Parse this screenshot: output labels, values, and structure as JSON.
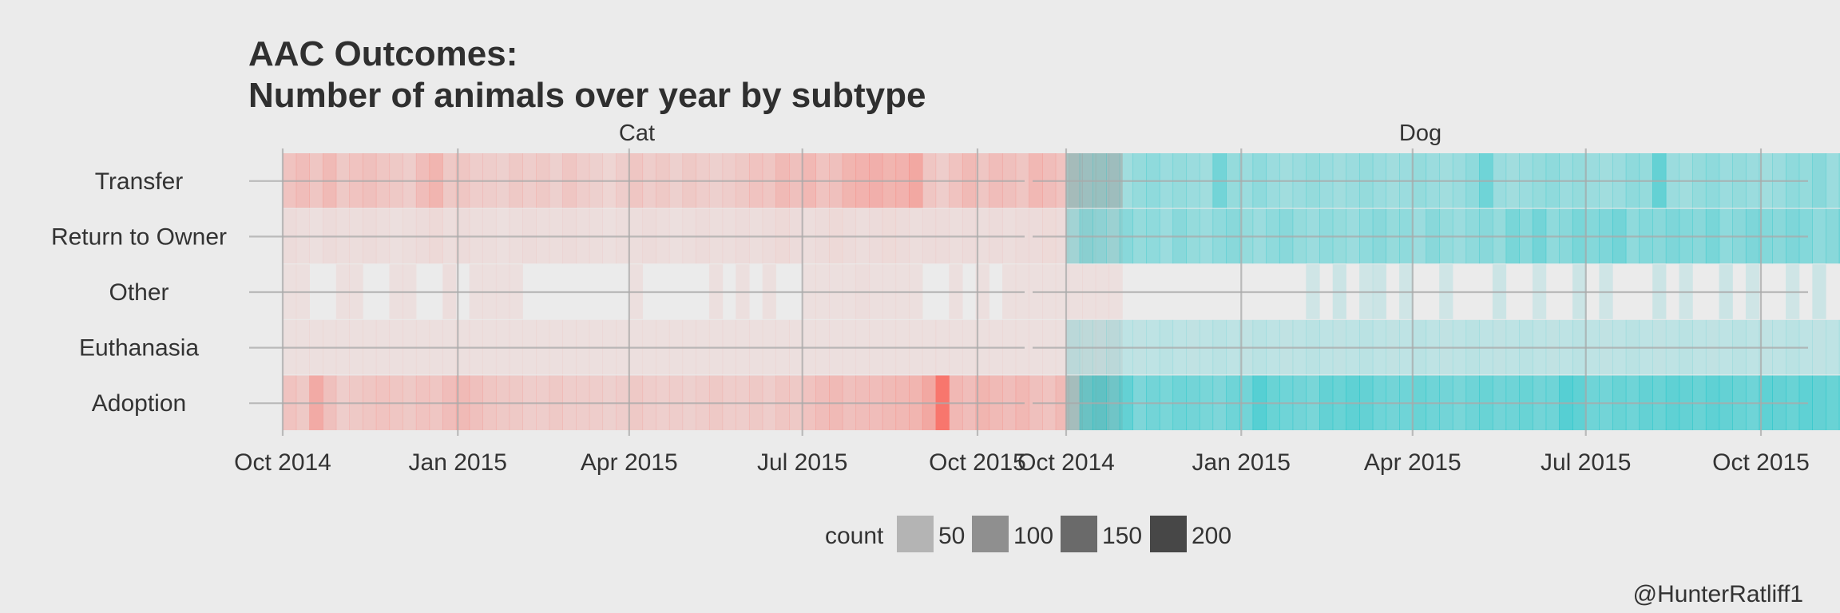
{
  "chart_data": {
    "type": "heatmap",
    "title": "AAC Outcomes:",
    "subtitle": "Number of animals over year by subtype",
    "caption": "@HunterRatliff1",
    "facets": [
      "Cat",
      "Dog"
    ],
    "y_categories": [
      "Transfer",
      "Return to Owner",
      "Other",
      "Euthanasia",
      "Adoption"
    ],
    "x_ticks": [
      "Oct 2014",
      "Jan 2015",
      "Apr 2015",
      "Jul 2015",
      "Oct 2015"
    ],
    "x_range": [
      "2014-10-01",
      "2015-10-22"
    ],
    "fill_legend": {
      "title": "count",
      "breaks": [
        50,
        100,
        150,
        200
      ]
    },
    "colors": {
      "Cat": "#f8766d",
      "Dog": "#00bfc4",
      "background": "#ebebeb",
      "grid": "#c9c9c9"
    },
    "series": [
      {
        "facet": "Cat",
        "x_start": "2014-10-01",
        "bin_days": 7,
        "rows": {
          "Transfer": [
            45,
            55,
            40,
            60,
            35,
            45,
            50,
            40,
            35,
            30,
            55,
            70,
            35,
            40,
            30,
            30,
            25,
            35,
            30,
            35,
            25,
            40,
            30,
            25,
            20,
            30,
            40,
            30,
            35,
            25,
            35,
            30,
            25,
            30,
            35,
            45,
            40,
            60,
            50,
            65,
            45,
            50,
            70,
            75,
            80,
            70,
            75,
            95,
            40,
            30,
            45,
            60,
            40,
            55,
            50,
            40,
            65,
            55,
            45,
            60,
            50,
            50,
            55
          ],
          "Return to Owner": [
            12,
            10,
            8,
            12,
            10,
            10,
            12,
            10,
            8,
            10,
            12,
            15,
            10,
            12,
            10,
            10,
            8,
            10,
            12,
            10,
            10,
            12,
            10,
            10,
            8,
            10,
            10,
            12,
            10,
            8,
            10,
            12,
            10,
            10,
            12,
            10,
            12,
            15,
            12,
            10,
            12,
            15,
            12,
            10,
            12,
            14,
            12,
            10,
            12,
            12,
            10,
            12,
            10,
            12,
            10,
            12,
            12,
            14,
            12,
            10,
            12,
            10,
            12
          ],
          "Other": [
            8,
            5,
            0,
            0,
            8,
            6,
            0,
            0,
            5,
            6,
            0,
            0,
            10,
            0,
            8,
            6,
            5,
            6,
            0,
            0,
            0,
            0,
            0,
            0,
            0,
            0,
            4,
            0,
            0,
            0,
            0,
            0,
            5,
            0,
            6,
            0,
            5,
            0,
            0,
            6,
            5,
            6,
            8,
            10,
            6,
            5,
            5,
            8,
            0,
            0,
            6,
            0,
            5,
            0,
            6,
            5,
            6,
            5,
            4,
            5,
            6,
            5,
            4
          ],
          "Euthanasia": [
            6,
            5,
            6,
            8,
            5,
            5,
            6,
            5,
            7,
            5,
            6,
            5,
            5,
            6,
            5,
            6,
            5,
            6,
            5,
            6,
            6,
            5,
            5,
            6,
            5,
            5,
            6,
            5,
            5,
            6,
            5,
            5,
            6,
            5,
            5,
            6,
            5,
            6,
            5,
            7,
            6,
            5,
            6,
            5,
            6,
            5,
            6,
            5,
            6,
            5,
            6,
            5,
            5,
            6,
            5,
            6,
            5,
            6,
            5,
            6,
            5,
            6,
            5
          ],
          "Adoption": [
            45,
            35,
            90,
            50,
            30,
            35,
            40,
            45,
            40,
            35,
            45,
            40,
            55,
            60,
            50,
            40,
            35,
            35,
            30,
            30,
            35,
            30,
            30,
            30,
            25,
            30,
            35,
            30,
            28,
            30,
            25,
            30,
            35,
            30,
            30,
            35,
            30,
            40,
            35,
            45,
            55,
            60,
            50,
            55,
            55,
            60,
            65,
            70,
            95,
            210,
            65,
            55,
            70,
            60,
            55,
            65,
            50,
            45,
            60,
            55,
            40,
            45,
            30
          ]
        }
      },
      {
        "facet": "Dog",
        "x_start": "2014-10-01",
        "bin_days": 7,
        "rows": {
          "Transfer": [
            40,
            45,
            50,
            45,
            40,
            50,
            55,
            45,
            50,
            45,
            40,
            80,
            50,
            45,
            55,
            45,
            40,
            45,
            50,
            45,
            40,
            45,
            50,
            45,
            40,
            45,
            50,
            45,
            40,
            45,
            55,
            85,
            45,
            40,
            45,
            50,
            55,
            45,
            50,
            45,
            40,
            45,
            55,
            50,
            95,
            45,
            40,
            50,
            55,
            45,
            50,
            45,
            40,
            45,
            55,
            50,
            60,
            45,
            50,
            55,
            70,
            45,
            40
          ],
          "Return to Owner": [
            40,
            60,
            55,
            45,
            60,
            50,
            55,
            45,
            60,
            50,
            45,
            55,
            60,
            50,
            45,
            55,
            60,
            50,
            45,
            55,
            50,
            45,
            55,
            60,
            50,
            55,
            45,
            60,
            50,
            45,
            55,
            60,
            50,
            75,
            60,
            80,
            55,
            60,
            75,
            65,
            70,
            80,
            55,
            65,
            60,
            70,
            65,
            60,
            75,
            55,
            60,
            70,
            65,
            60,
            70,
            65,
            55,
            60,
            70,
            65,
            60,
            70,
            55
          ],
          "Other": [
            0,
            0,
            0,
            0,
            0,
            0,
            0,
            0,
            0,
            0,
            0,
            0,
            0,
            0,
            0,
            0,
            0,
            0,
            10,
            0,
            12,
            0,
            10,
            12,
            0,
            10,
            0,
            0,
            10,
            0,
            0,
            0,
            12,
            0,
            0,
            10,
            0,
            0,
            12,
            0,
            10,
            0,
            0,
            0,
            12,
            0,
            10,
            0,
            0,
            12,
            0,
            10,
            0,
            0,
            10,
            0,
            12,
            0,
            0,
            10,
            0,
            10,
            0
          ],
          "Euthanasia": [
            22,
            20,
            18,
            22,
            20,
            18,
            20,
            22,
            20,
            18,
            20,
            22,
            20,
            18,
            22,
            20,
            18,
            20,
            22,
            20,
            18,
            20,
            22,
            20,
            18,
            20,
            22,
            20,
            18,
            20,
            22,
            20,
            18,
            20,
            22,
            20,
            18,
            20,
            22,
            20,
            18,
            20,
            22,
            20,
            18,
            20,
            22,
            20,
            18,
            20,
            22,
            20,
            18,
            20,
            22,
            20,
            18,
            20,
            22,
            20,
            18,
            20,
            22
          ],
          "Adoption": [
            40,
            90,
            100,
            85,
            95,
            70,
            80,
            75,
            85,
            80,
            75,
            70,
            85,
            80,
            110,
            90,
            85,
            80,
            75,
            95,
            90,
            100,
            95,
            85,
            80,
            85,
            90,
            85,
            80,
            75,
            85,
            90,
            80,
            85,
            90,
            80,
            85,
            110,
            100,
            85,
            80,
            90,
            85,
            95,
            90,
            100,
            95,
            90,
            100,
            95,
            90,
            85,
            100,
            95,
            90,
            100,
            95,
            90,
            85,
            90,
            85,
            80,
            75
          ]
        }
      }
    ]
  }
}
